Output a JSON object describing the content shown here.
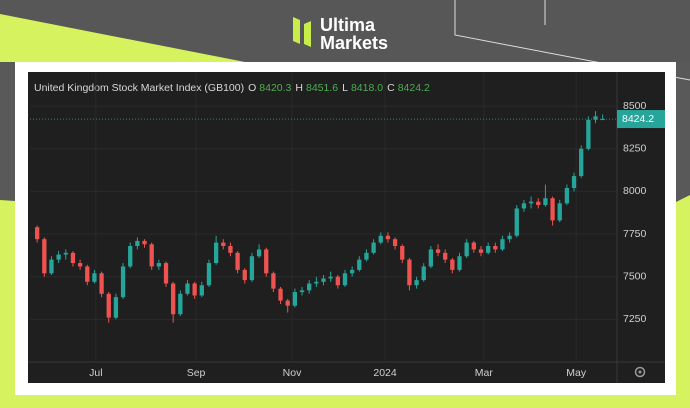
{
  "header": {
    "brand_line1": "Ultima",
    "brand_line2": "Markets"
  },
  "chart_data": {
    "type": "candlestick",
    "title": "United Kingdom Stock Market Index (GB100)",
    "ohlc_readout": [
      {
        "key": "O",
        "value": 8420.3
      },
      {
        "key": "H",
        "value": 8451.6
      },
      {
        "key": "L",
        "value": 8418,
        "label": "8418.0"
      },
      {
        "key": "C",
        "value": 8424.2
      }
    ],
    "last_price": 8424.2,
    "up_color": "#26a69a",
    "down_color": "#ef5350",
    "open": [
      7790,
      7720,
      7520,
      7600,
      7630,
      7640,
      7580,
      7560,
      7470,
      7520,
      7400,
      7260,
      7380,
      7560,
      7680,
      7710,
      7690,
      7560,
      7580,
      7460,
      7280,
      7400,
      7460,
      7390,
      7450,
      7580,
      7700,
      7680,
      7640,
      7540,
      7480,
      7620,
      7660,
      7520,
      7430,
      7360,
      7330,
      7410,
      7420,
      7460,
      7470,
      7490,
      7500,
      7450,
      7520,
      7540,
      7600,
      7640,
      7700,
      7740,
      7720,
      7680,
      7600,
      7450,
      7480,
      7560,
      7660,
      7640,
      7600,
      7540,
      7620,
      7700,
      7660,
      7640,
      7680,
      7660,
      7720,
      7740,
      7900,
      7930,
      7940,
      7920,
      7960,
      7830,
      7930,
      8020,
      8090,
      8250,
      8420,
      8420.3
    ],
    "high": [
      7800,
      7730,
      7620,
      7650,
      7660,
      7650,
      7600,
      7570,
      7540,
      7530,
      7410,
      7400,
      7580,
      7700,
      7730,
      7720,
      7700,
      7600,
      7590,
      7470,
      7420,
      7480,
      7470,
      7470,
      7600,
      7740,
      7720,
      7700,
      7650,
      7550,
      7640,
      7690,
      7670,
      7530,
      7440,
      7370,
      7430,
      7440,
      7480,
      7500,
      7510,
      7530,
      7510,
      7540,
      7560,
      7620,
      7660,
      7720,
      7760,
      7760,
      7730,
      7690,
      7610,
      7500,
      7580,
      7680,
      7690,
      7660,
      7610,
      7640,
      7720,
      7710,
      7680,
      7700,
      7700,
      7740,
      7760,
      7920,
      7950,
      7970,
      7960,
      8040,
      7970,
      7950,
      8040,
      8110,
      8270,
      8440,
      8470,
      8451.6
    ],
    "low": [
      7700,
      7500,
      7510,
      7580,
      7600,
      7560,
      7540,
      7450,
      7460,
      7380,
      7230,
      7250,
      7370,
      7550,
      7660,
      7670,
      7540,
      7540,
      7440,
      7230,
      7270,
      7390,
      7370,
      7380,
      7440,
      7570,
      7660,
      7620,
      7520,
      7460,
      7470,
      7610,
      7500,
      7410,
      7340,
      7290,
      7320,
      7390,
      7400,
      7440,
      7450,
      7470,
      7430,
      7440,
      7500,
      7530,
      7590,
      7630,
      7690,
      7700,
      7660,
      7580,
      7420,
      7430,
      7470,
      7550,
      7620,
      7580,
      7520,
      7530,
      7610,
      7640,
      7620,
      7630,
      7640,
      7650,
      7700,
      7730,
      7880,
      7900,
      7900,
      7910,
      7800,
      7820,
      7920,
      8000,
      8080,
      8240,
      8400,
      8418
    ],
    "close": [
      7720,
      7520,
      7600,
      7630,
      7640,
      7580,
      7560,
      7470,
      7520,
      7400,
      7260,
      7380,
      7560,
      7680,
      7710,
      7690,
      7560,
      7580,
      7460,
      7280,
      7400,
      7460,
      7390,
      7450,
      7580,
      7700,
      7680,
      7640,
      7540,
      7480,
      7620,
      7660,
      7520,
      7430,
      7360,
      7330,
      7410,
      7420,
      7460,
      7470,
      7490,
      7500,
      7450,
      7520,
      7540,
      7600,
      7640,
      7700,
      7740,
      7720,
      7680,
      7600,
      7450,
      7480,
      7560,
      7660,
      7640,
      7600,
      7540,
      7620,
      7700,
      7660,
      7640,
      7680,
      7660,
      7720,
      7740,
      7900,
      7930,
      7940,
      7920,
      7960,
      7830,
      7930,
      8020,
      8090,
      8250,
      8420,
      8440,
      8424.2
    ],
    "xlim": [
      -1,
      81
    ],
    "xticks": [
      {
        "value": 8.2,
        "label": "Jul"
      },
      {
        "value": 22.2,
        "label": "Sep"
      },
      {
        "value": 35.6,
        "label": "Nov"
      },
      {
        "value": 48.6,
        "label": "2024"
      },
      {
        "value": 62.4,
        "label": "Mar"
      },
      {
        "value": 75.3,
        "label": "May"
      }
    ],
    "ylim": [
      7000,
      8700
    ],
    "yticks": [
      7250,
      7500,
      7750,
      8000,
      8250,
      8500
    ],
    "grid": true
  }
}
